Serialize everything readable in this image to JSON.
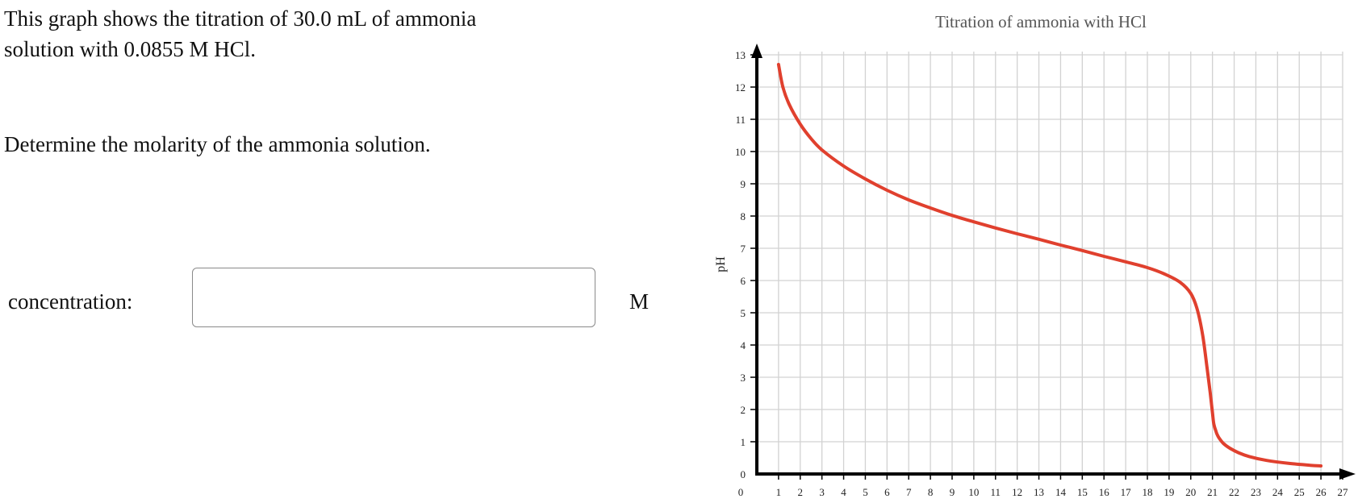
{
  "question": {
    "line1": "This graph shows the titration of 30.0 mL of ammonia",
    "line2": "solution with 0.0855 M HCl.",
    "prompt": "Determine the molarity of the ammonia solution."
  },
  "answer": {
    "label": "concentration:",
    "value": "",
    "placeholder": "",
    "unit": "M"
  },
  "chart_data": {
    "type": "line",
    "title": "Titration of ammonia with HCl",
    "xlabel": "",
    "ylabel": "pH",
    "xlim": [
      0,
      27
    ],
    "ylim": [
      0,
      13
    ],
    "x_ticks": [
      "0",
      "1",
      "2",
      "3",
      "4",
      "5",
      "6",
      "7",
      "8",
      "9",
      "10",
      "11",
      "12",
      "13",
      "14",
      "15",
      "16",
      "17",
      "18",
      "19",
      "20",
      "21",
      "22",
      "23",
      "24",
      "25",
      "26",
      "27"
    ],
    "y_ticks": [
      "0",
      "1",
      "2",
      "3",
      "4",
      "5",
      "6",
      "7",
      "8",
      "9",
      "10",
      "11",
      "12",
      "13"
    ],
    "grid": true,
    "series": [
      {
        "color": "#e0402e",
        "x": [
          1.0,
          1.2,
          1.5,
          2.0,
          2.5,
          3.0,
          4.0,
          5.0,
          6.0,
          7.0,
          8.0,
          9.0,
          10.0,
          11.0,
          12.0,
          13.0,
          14.0,
          15.0,
          16.0,
          17.0,
          18.0,
          18.8,
          19.5,
          20.0,
          20.3,
          20.55,
          20.75,
          20.9,
          21.0,
          21.05,
          21.1,
          21.15,
          21.2,
          21.3,
          21.5,
          21.8,
          22.2,
          22.7,
          23.5,
          24.5,
          25.5,
          26.0
        ],
        "y": [
          12.7,
          12.0,
          11.45,
          10.85,
          10.4,
          10.05,
          9.55,
          9.15,
          8.8,
          8.5,
          8.25,
          8.02,
          7.82,
          7.63,
          7.45,
          7.28,
          7.1,
          6.93,
          6.75,
          6.58,
          6.4,
          6.2,
          5.95,
          5.6,
          5.1,
          4.3,
          3.3,
          2.5,
          1.9,
          1.6,
          1.45,
          1.35,
          1.25,
          1.12,
          0.95,
          0.8,
          0.66,
          0.54,
          0.42,
          0.33,
          0.27,
          0.25
        ]
      }
    ]
  }
}
